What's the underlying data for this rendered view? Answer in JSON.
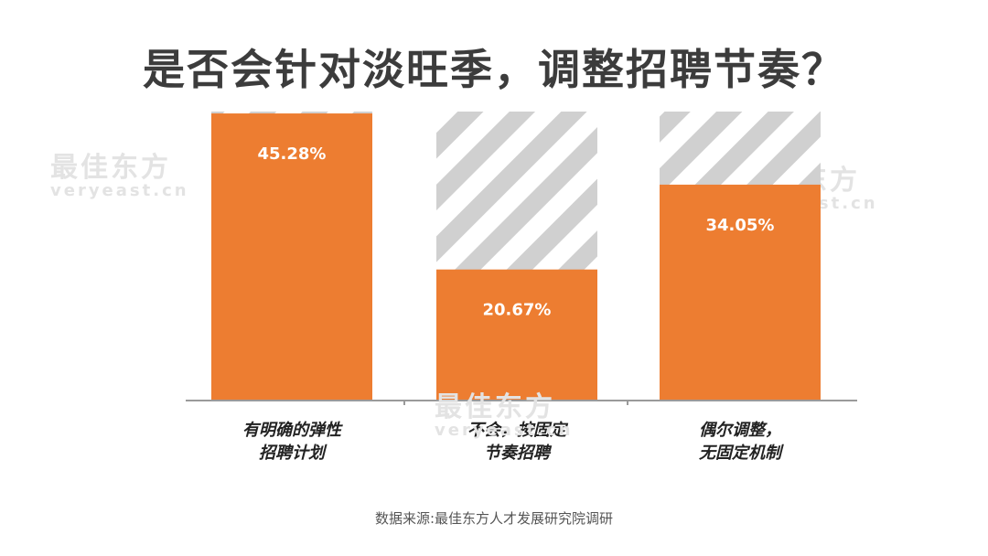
{
  "title": "是否会针对淡旺季，调整招聘节奏？",
  "source": "数据来源:最佳东方人才发展研究院调研",
  "watermark": {
    "cn": "最佳东方",
    "en": "veryeast.cn"
  },
  "chart_data": {
    "type": "bar",
    "stacked_to_100": true,
    "categories": [
      [
        "有明确的弹性",
        "招聘计划"
      ],
      [
        "不会，按固定",
        "节奏招聘"
      ],
      [
        "偶尔调整，",
        "无固定机制"
      ]
    ],
    "series": [
      {
        "values": [
          45.28,
          20.67,
          34.05
        ]
      }
    ],
    "value_labels": [
      "45.28%",
      "20.67%",
      "34.05%"
    ],
    "ylim": [
      0,
      45.28
    ],
    "colors": {
      "bar": "#ED7D31",
      "remainder_stripe_a": "#d0d0d0",
      "remainder_stripe_b": "#ffffff",
      "axis": "#9a9a9a"
    }
  }
}
